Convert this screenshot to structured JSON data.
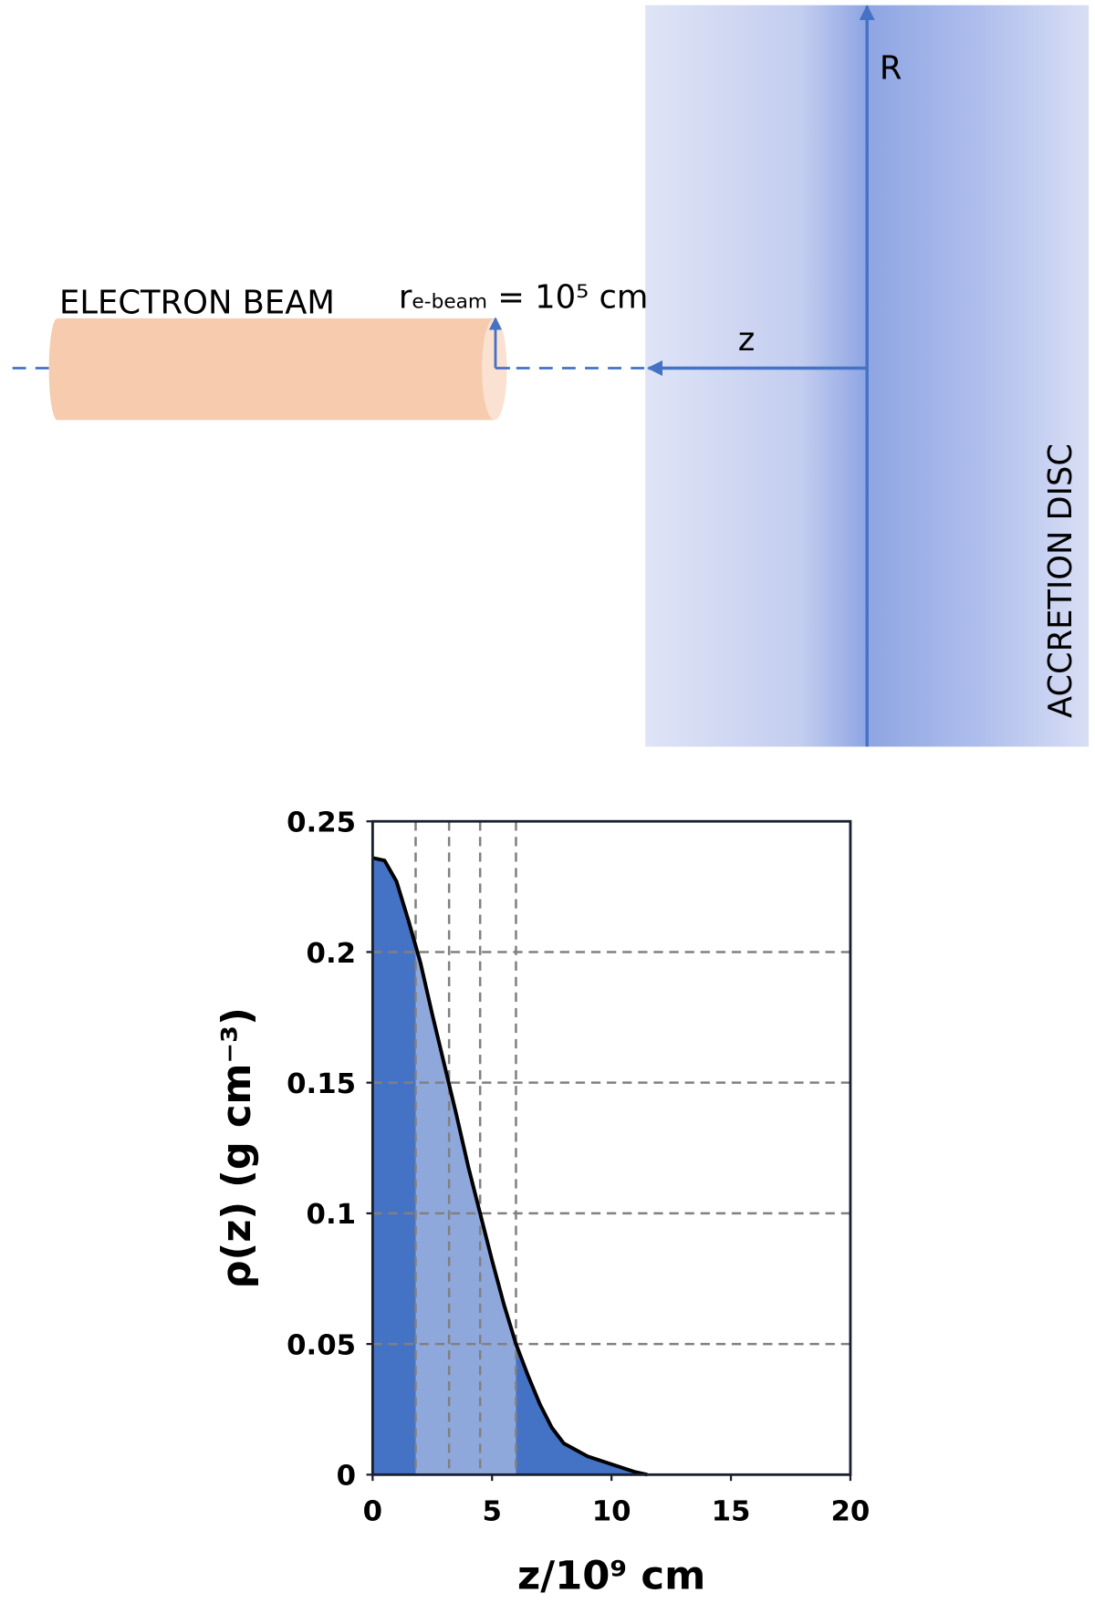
{
  "diagram": {
    "beam_label": "ELECTRON BEAM",
    "beam_radius_symbol": "r",
    "beam_radius_subscript": "e-beam",
    "beam_radius_value": " = 10⁵ cm",
    "z_axis_label": "z",
    "r_axis_label": "R",
    "disc_label": "ACCRETION DISC"
  },
  "chart_data": {
    "type": "area",
    "xlabel": "z/10⁹ cm",
    "ylabel": "ρ(z) (g cm⁻³)",
    "x": [
      0,
      0.5,
      1,
      1.5,
      2,
      2.5,
      3,
      3.5,
      4,
      4.5,
      5,
      5.5,
      6,
      6.5,
      7,
      7.5,
      8,
      9,
      10,
      11,
      11.5
    ],
    "series": [
      {
        "color": "#4472c4",
        "values": [
          0.236,
          0.235,
          0.227,
          0.212,
          0.196,
          0.176,
          0.157,
          0.138,
          0.118,
          0.1,
          0.082,
          0.065,
          0.05,
          0.038,
          0.027,
          0.018,
          0.012,
          0.007,
          0.004,
          0.001,
          0
        ]
      }
    ],
    "highlight_color": "#8fa8dc",
    "reference_x": [
      1.8,
      3.2,
      4.5,
      6.0
    ],
    "reference_y": [
      0.2,
      0.15,
      0.1,
      0.05
    ],
    "xlim": [
      0,
      20
    ],
    "xticks": [
      0,
      5,
      10,
      15,
      20
    ],
    "ylim": [
      0,
      0.25
    ],
    "yticks": [
      0,
      0.05,
      0.1,
      0.15,
      0.2,
      0.25
    ]
  }
}
